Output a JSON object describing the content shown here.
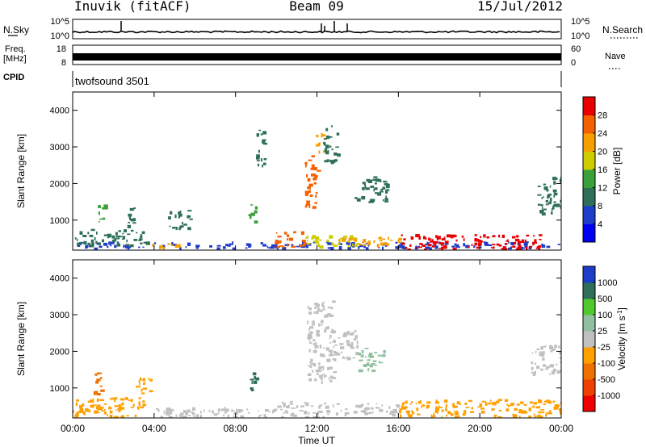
{
  "header": {
    "station": "Inuvik (fitACF)",
    "beam": "Beam 09",
    "date": "15/Jul/2012"
  },
  "noise_panel": {
    "left_label": "N.Sky",
    "right_label": "N.Search",
    "left_ticks": [
      "10^5",
      "10^0"
    ],
    "right_ticks": [
      "10^5",
      "10^0"
    ]
  },
  "freq_panel": {
    "left_label_top": "Freq.",
    "left_label_unit": "[MHz]",
    "left_ticks": [
      "18",
      "8"
    ],
    "right_label": "Nave",
    "right_ticks": [
      "60",
      "0"
    ]
  },
  "cpid_panel": {
    "label": "CPID",
    "program": "twofsound 3501"
  },
  "colors": {
    "power_scale": [
      "#0000f0",
      "#1e3cc8",
      "#2e6e5a",
      "#3aa03a",
      "#cccc00",
      "#f5a000",
      "#f56000",
      "#e80000"
    ],
    "velocity_scale": [
      "#ee0000",
      "#ee4000",
      "#ee7000",
      "#ffa000",
      "#c0c0c0",
      "#90c0a0",
      "#50c830",
      "#2e6e5a",
      "#1e3cc8"
    ]
  },
  "chart_data": [
    {
      "type": "heatmap",
      "title": "",
      "xlabel": "Time UT",
      "ylabel": "Slant Range [km]",
      "x_tick_labels": [
        "00:00",
        "04:00",
        "08:00",
        "12:00",
        "16:00",
        "20:00",
        "00:00"
      ],
      "y_tick_labels": [
        "1000",
        "2000",
        "3000",
        "4000"
      ],
      "xlim_hours": [
        0,
        24
      ],
      "ylim_km": [
        180,
        4500
      ],
      "colorbar": {
        "label": "Power [dB]",
        "tick_labels": [
          "4",
          "8",
          "12",
          "16",
          "20",
          "24",
          "28"
        ],
        "range": [
          0,
          32
        ]
      },
      "echo_regions_note": "",
      "regions": [
        {
          "t0": 0.0,
          "t1": 24.0,
          "r0": 250,
          "r1": 420,
          "value": 6
        },
        {
          "t0": 0.1,
          "t1": 3.6,
          "r0": 320,
          "r1": 760,
          "value": 10
        },
        {
          "t0": 3.5,
          "t1": 5.2,
          "r0": 250,
          "r1": 380,
          "value": 22
        },
        {
          "t0": 9.9,
          "t1": 11.4,
          "r0": 250,
          "r1": 700,
          "value": 26
        },
        {
          "t0": 11.4,
          "t1": 14.0,
          "r0": 300,
          "r1": 600,
          "value": 18
        },
        {
          "t0": 13.0,
          "t1": 16.0,
          "r0": 300,
          "r1": 560,
          "value": 20
        },
        {
          "t0": 16.1,
          "t1": 23.0,
          "r0": 220,
          "r1": 620,
          "value": 30
        },
        {
          "t0": 11.4,
          "t1": 12.0,
          "r0": 1200,
          "r1": 2800,
          "value": 26
        },
        {
          "t0": 11.9,
          "t1": 12.3,
          "r0": 2800,
          "r1": 3400,
          "value": 22
        },
        {
          "t0": 12.3,
          "t1": 13.0,
          "r0": 2600,
          "r1": 3600,
          "value": 8
        },
        {
          "t0": 9.0,
          "t1": 9.4,
          "r0": 2500,
          "r1": 3600,
          "value": 10
        },
        {
          "t0": 8.6,
          "t1": 9.0,
          "r0": 850,
          "r1": 1450,
          "value": 12
        },
        {
          "t0": 1.2,
          "t1": 1.6,
          "r0": 850,
          "r1": 1450,
          "value": 14
        },
        {
          "t0": 2.5,
          "t1": 3.0,
          "r0": 850,
          "r1": 1350,
          "value": 10
        },
        {
          "t0": 4.6,
          "t1": 5.8,
          "r0": 800,
          "r1": 1300,
          "value": 8
        },
        {
          "t0": 13.8,
          "t1": 15.4,
          "r0": 1500,
          "r1": 2200,
          "value": 10
        },
        {
          "t0": 22.8,
          "t1": 24.0,
          "r0": 1200,
          "r1": 2200,
          "value": 8
        }
      ]
    },
    {
      "type": "heatmap",
      "title": "",
      "xlabel": "Time UT",
      "ylabel": "Slant Range [km]",
      "x_tick_labels": [
        "00:00",
        "04:00",
        "08:00",
        "12:00",
        "16:00",
        "20:00",
        "00:00"
      ],
      "y_tick_labels": [
        "1000",
        "2000",
        "3000",
        "4000"
      ],
      "xlim_hours": [
        0,
        24
      ],
      "ylim_km": [
        180,
        4500
      ],
      "colorbar": {
        "label": "Velocity [m s-1]",
        "label_parts": [
          "Velocity  [m s",
          "-1",
          "]"
        ],
        "tick_labels": [
          "-1000",
          "-500",
          "-100",
          "-25",
          "25",
          "100",
          "500",
          "1000"
        ],
        "range": [
          -1200,
          1200
        ]
      },
      "regions": [
        {
          "t0": 0.0,
          "t1": 3.5,
          "r0": 220,
          "r1": 750,
          "value": -150
        },
        {
          "t0": 3.5,
          "t1": 10.0,
          "r0": 220,
          "r1": 480,
          "value": 60
        },
        {
          "t0": 10.0,
          "t1": 12.5,
          "r0": 220,
          "r1": 650,
          "value": 80
        },
        {
          "t0": 12.5,
          "t1": 16.0,
          "r0": 300,
          "r1": 600,
          "value": 0
        },
        {
          "t0": 16.0,
          "t1": 24.0,
          "r0": 220,
          "r1": 700,
          "value": -250
        },
        {
          "t0": 1.0,
          "t1": 1.5,
          "r0": 850,
          "r1": 1450,
          "value": -500
        },
        {
          "t0": 3.0,
          "t1": 3.9,
          "r0": 850,
          "r1": 1300,
          "value": -400
        },
        {
          "t0": 8.6,
          "t1": 9.0,
          "r0": 850,
          "r1": 1450,
          "value": 700
        },
        {
          "t0": 11.5,
          "t1": 12.8,
          "r0": 1200,
          "r1": 3400,
          "value": 120
        },
        {
          "t0": 12.8,
          "t1": 14.0,
          "r0": 1800,
          "r1": 2600,
          "value": 0
        },
        {
          "t0": 14.0,
          "t1": 15.3,
          "r0": 1500,
          "r1": 2100,
          "value": 150
        },
        {
          "t0": 22.5,
          "t1": 24.0,
          "r0": 1400,
          "r1": 2200,
          "value": 0
        }
      ]
    }
  ]
}
